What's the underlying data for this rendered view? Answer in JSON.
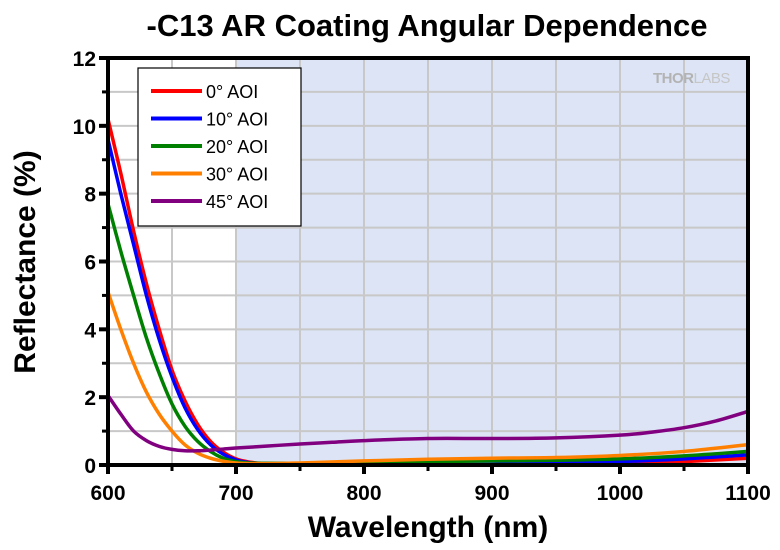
{
  "chart_data": {
    "type": "line",
    "title": "-C13 AR Coating Angular Dependence",
    "xlabel": "Wavelength (nm)",
    "ylabel": "Reflectance (%)",
    "xlim": [
      600,
      1100
    ],
    "ylim": [
      0,
      12
    ],
    "xticks": [
      600,
      700,
      800,
      900,
      1000,
      1100
    ],
    "xticks_minor": [
      650,
      750,
      850,
      950,
      1050
    ],
    "yticks": [
      0,
      2,
      4,
      6,
      8,
      10,
      12
    ],
    "yticks_minor": [
      1,
      3,
      5,
      7,
      9,
      11
    ],
    "grid": true,
    "legend_position": "top-left",
    "shaded_region": {
      "x_range": [
        700,
        1100
      ],
      "color": "#dce4f5",
      "meaning": "specified AR band"
    },
    "watermark": {
      "text_bold": "THOR",
      "text_light": "LABS"
    },
    "series": [
      {
        "name": "0° AOI",
        "color": "#ff0000",
        "x": [
          600,
          610,
          620,
          630,
          640,
          650,
          660,
          670,
          680,
          690,
          700,
          710,
          720,
          750,
          800,
          850,
          900,
          950,
          1000,
          1050,
          1100
        ],
        "y": [
          10.2,
          8.6,
          6.9,
          5.35,
          4.0,
          2.8,
          1.9,
          1.2,
          0.7,
          0.38,
          0.18,
          0.09,
          0.05,
          0.02,
          0.0,
          0.0,
          0.0,
          0.01,
          0.03,
          0.1,
          0.2
        ]
      },
      {
        "name": "10° AOI",
        "color": "#0000ff",
        "x": [
          600,
          610,
          620,
          630,
          640,
          650,
          660,
          670,
          680,
          690,
          700,
          710,
          720,
          750,
          800,
          850,
          900,
          950,
          1000,
          1050,
          1100
        ],
        "y": [
          9.6,
          8.0,
          6.5,
          5.0,
          3.7,
          2.6,
          1.7,
          1.05,
          0.6,
          0.32,
          0.15,
          0.07,
          0.04,
          0.02,
          0.01,
          0.01,
          0.02,
          0.05,
          0.1,
          0.18,
          0.3
        ]
      },
      {
        "name": "20° AOI",
        "color": "#008000",
        "x": [
          600,
          610,
          620,
          630,
          640,
          650,
          660,
          670,
          680,
          690,
          700,
          710,
          720,
          750,
          800,
          850,
          900,
          950,
          1000,
          1050,
          1100
        ],
        "y": [
          7.7,
          6.3,
          5.0,
          3.75,
          2.7,
          1.8,
          1.15,
          0.7,
          0.4,
          0.2,
          0.1,
          0.06,
          0.05,
          0.05,
          0.07,
          0.1,
          0.12,
          0.14,
          0.18,
          0.27,
          0.4
        ]
      },
      {
        "name": "30° AOI",
        "color": "#ff8000",
        "x": [
          600,
          610,
          620,
          630,
          640,
          650,
          660,
          670,
          680,
          690,
          700,
          710,
          720,
          750,
          800,
          850,
          900,
          950,
          1000,
          1050,
          1100
        ],
        "y": [
          5.1,
          4.0,
          3.0,
          2.15,
          1.5,
          1.0,
          0.6,
          0.35,
          0.2,
          0.11,
          0.06,
          0.04,
          0.04,
          0.06,
          0.12,
          0.17,
          0.2,
          0.22,
          0.28,
          0.4,
          0.6
        ]
      },
      {
        "name": "45° AOI",
        "color": "#800080",
        "x": [
          600,
          610,
          620,
          630,
          640,
          650,
          660,
          670,
          680,
          690,
          700,
          725,
          750,
          775,
          800,
          850,
          900,
          950,
          1000,
          1025,
          1050,
          1075,
          1100
        ],
        "y": [
          2.05,
          1.5,
          1.0,
          0.72,
          0.55,
          0.46,
          0.42,
          0.42,
          0.44,
          0.47,
          0.5,
          0.56,
          0.62,
          0.67,
          0.72,
          0.78,
          0.78,
          0.8,
          0.88,
          0.97,
          1.1,
          1.3,
          1.58
        ]
      }
    ]
  }
}
